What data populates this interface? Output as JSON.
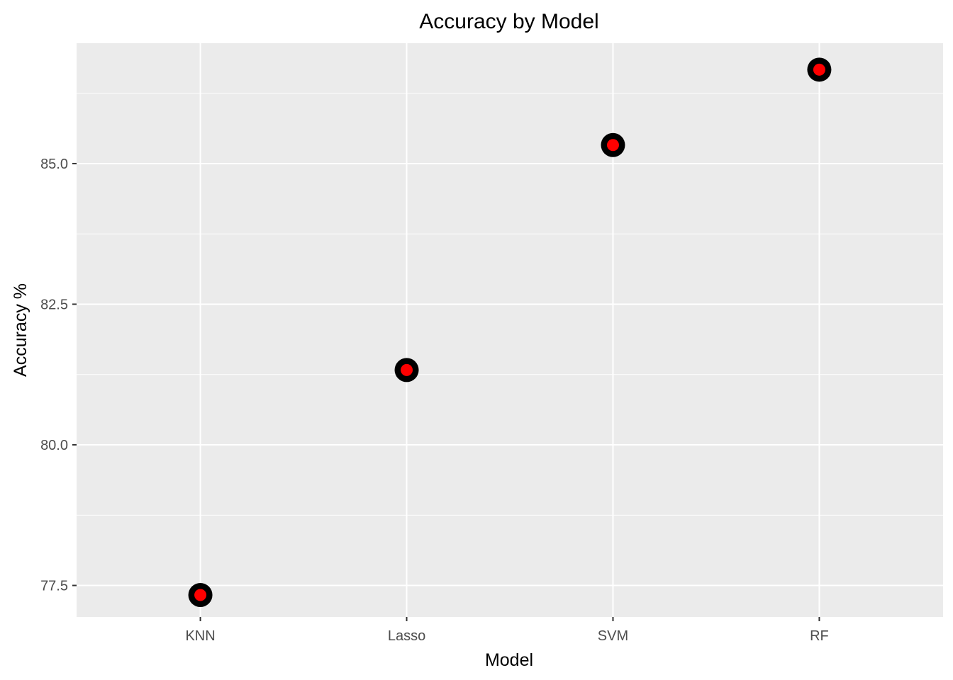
{
  "chart_data": {
    "type": "scatter",
    "title": "Accuracy by Model",
    "xlabel": "Model",
    "ylabel": "Accuracy %",
    "categories": [
      "KNN",
      "Lasso",
      "SVM",
      "RF"
    ],
    "values": [
      77.33,
      81.33,
      85.33,
      86.67
    ],
    "y_ticks": [
      77.5,
      80.0,
      82.5,
      85.0
    ],
    "y_tick_labels": [
      "77.5",
      "80.0",
      "82.5",
      "85.0"
    ],
    "ylim": [
      76.94,
      87.14
    ],
    "grid": true,
    "legend": "none",
    "colors": {
      "panel_background": "#ebebeb",
      "grid_line": "#ffffff",
      "point_outline": "#000000",
      "point_fill": "#ff0000",
      "tick_text": "#4d4d4d",
      "tick_mark": "#333333"
    }
  }
}
